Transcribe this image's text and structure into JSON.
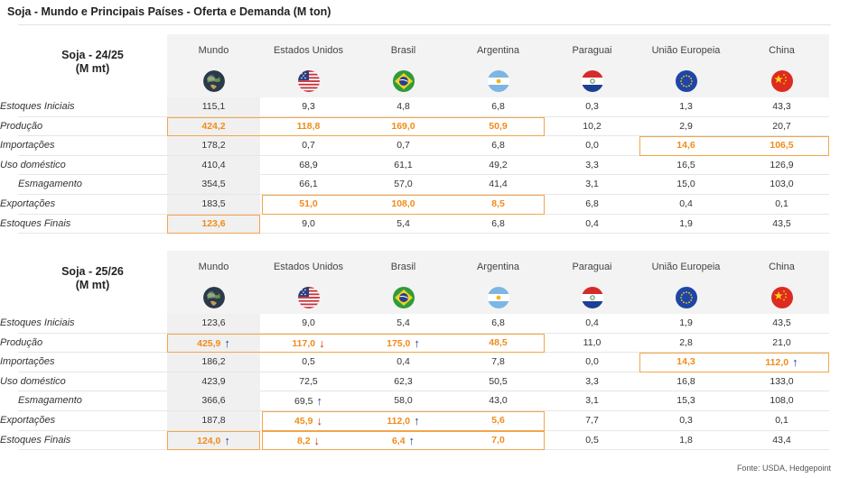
{
  "page_title": "Soja - Mundo e Principais Países - Oferta e Demanda (M ton)",
  "source": "Fonte: USDA, Hedgepoint",
  "columns": [
    {
      "name": "Mundo",
      "flag_icon": "globe-icon"
    },
    {
      "name": "Estados Unidos",
      "flag_icon": "usa-flag-icon"
    },
    {
      "name": "Brasil",
      "flag_icon": "brazil-flag-icon"
    },
    {
      "name": "Argentina",
      "flag_icon": "argentina-flag-icon"
    },
    {
      "name": "Paraguai",
      "flag_icon": "paraguay-flag-icon"
    },
    {
      "name": "União Europeia",
      "flag_icon": "eu-flag-icon"
    },
    {
      "name": "China",
      "flag_icon": "china-flag-icon"
    }
  ],
  "colors": {
    "highlight": "#f08c1a",
    "arrow_up": "#1f3f9e",
    "arrow_down": "#d92a1c"
  },
  "tables": [
    {
      "title_line1": "Soja - 24/25",
      "title_line2": "(M mt)",
      "rows": [
        {
          "label": "Estoques Iniciais",
          "values": [
            "115,1",
            "9,3",
            "4,8",
            "6,8",
            "0,3",
            "1,3",
            "43,3"
          ]
        },
        {
          "label": "Produção",
          "values": [
            "424,2",
            "118,8",
            "169,0",
            "50,9",
            "10,2",
            "2,9",
            "20,7"
          ]
        },
        {
          "label": "Importações",
          "values": [
            "178,2",
            "0,7",
            "0,7",
            "6,8",
            "0,0",
            "14,6",
            "106,5"
          ]
        },
        {
          "label": "Uso doméstico",
          "values": [
            "410,4",
            "68,9",
            "61,1",
            "49,2",
            "3,3",
            "16,5",
            "126,9"
          ]
        },
        {
          "label": "Esmagamento",
          "values": [
            "354,5",
            "66,1",
            "57,0",
            "41,4",
            "3,1",
            "15,0",
            "103,0"
          ]
        },
        {
          "label": "Exportações",
          "values": [
            "183,5",
            "51,0",
            "108,0",
            "8,5",
            "6,8",
            "0,4",
            "0,1"
          ]
        },
        {
          "label": "Estoques Finais",
          "values": [
            "123,6",
            "9,0",
            "5,4",
            "6,8",
            "0,4",
            "1,9",
            "43,5"
          ]
        }
      ]
    },
    {
      "title_line1": "Soja - 25/26",
      "title_line2": "(M mt)",
      "rows": [
        {
          "label": "Estoques Iniciais",
          "values": [
            "123,6",
            "9,0",
            "5,4",
            "6,8",
            "0,4",
            "1,9",
            "43,5"
          ]
        },
        {
          "label": "Produção",
          "values": [
            "425,9",
            "117,0",
            "175,0",
            "48,5",
            "11,0",
            "2,8",
            "21,0"
          ]
        },
        {
          "label": "Importações",
          "values": [
            "186,2",
            "0,5",
            "0,4",
            "7,8",
            "0,0",
            "14,3",
            "112,0"
          ]
        },
        {
          "label": "Uso doméstico",
          "values": [
            "423,9",
            "72,5",
            "62,3",
            "50,5",
            "3,3",
            "16,8",
            "133,0"
          ]
        },
        {
          "label": "Esmagamento",
          "values": [
            "366,6",
            "69,5",
            "58,0",
            "43,0",
            "3,1",
            "15,3",
            "108,0"
          ]
        },
        {
          "label": "Exportações",
          "values": [
            "187,8",
            "45,9",
            "112,0",
            "5,6",
            "7,7",
            "0,3",
            "0,1"
          ]
        },
        {
          "label": "Estoques Finais",
          "values": [
            "124,0",
            "8,2",
            "6,4",
            "7,0",
            "0,5",
            "1,8",
            "43,4"
          ]
        }
      ]
    }
  ],
  "highlights": [
    {
      "table": 0,
      "row": 1,
      "cols": [
        0,
        1,
        2,
        3
      ],
      "arrows": {}
    },
    {
      "table": 0,
      "row": 2,
      "cols": [
        5,
        6
      ],
      "arrows": {}
    },
    {
      "table": 0,
      "row": 5,
      "cols": [
        1,
        2,
        3
      ],
      "arrows": {}
    },
    {
      "table": 0,
      "row": 6,
      "cols": [
        0
      ],
      "arrows": {}
    },
    {
      "table": 1,
      "row": 1,
      "cols": [
        0,
        1,
        2,
        3
      ],
      "arrows": {
        "0": "up",
        "1": "down",
        "2": "up"
      }
    },
    {
      "table": 1,
      "row": 2,
      "cols": [
        5,
        6
      ],
      "arrows": {
        "6": "up"
      }
    },
    {
      "table": 1,
      "row": 5,
      "cols": [
        1,
        2,
        3
      ],
      "arrows": {
        "1": "down",
        "2": "up"
      }
    },
    {
      "table": 1,
      "row": 6,
      "cols": [
        0
      ],
      "arrows": {
        "0": "up"
      }
    },
    {
      "table": 1,
      "row": 6,
      "cols": [
        1,
        2,
        3
      ],
      "arrows": {
        "1": "down",
        "2": "up"
      }
    }
  ],
  "plain_arrows": [
    {
      "table": 1,
      "row": 4,
      "col": 1,
      "dir": "up"
    }
  ]
}
